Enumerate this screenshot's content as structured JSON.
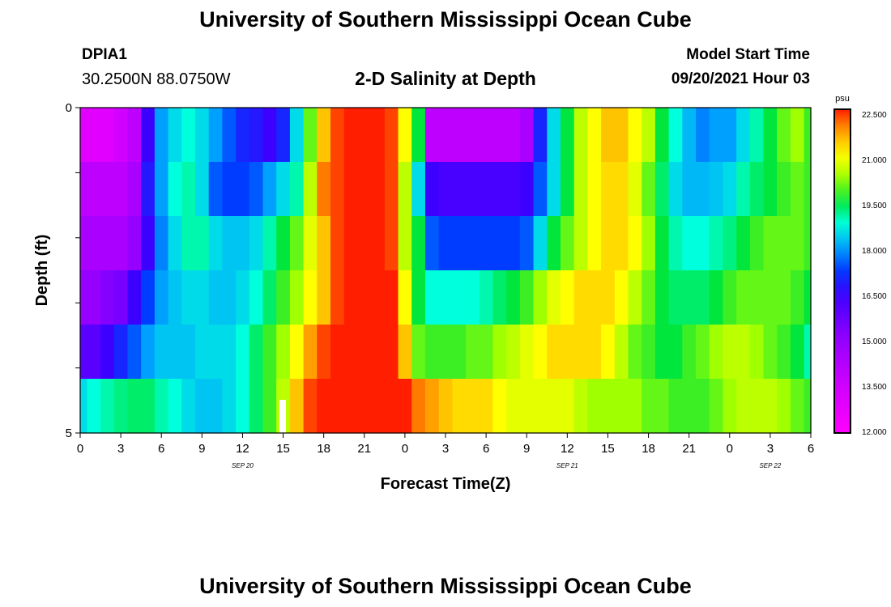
{
  "header": {
    "title": "University of Southern Mississippi Ocean Cube",
    "station": "DPIA1",
    "coords": "30.2500N  88.0750W",
    "subtitle": "2-D Salinity at Depth",
    "model_label": "Model Start Time",
    "model_time": "09/20/2021 Hour 03"
  },
  "footer": {
    "title": "University of Southern Mississippi Ocean Cube"
  },
  "chart_data": {
    "type": "heatmap",
    "title": "2-D Salinity at Depth",
    "xlabel": "Forecast Time(Z)",
    "ylabel": "Depth (ft)",
    "x_ticks": [
      "0",
      "3",
      "6",
      "9",
      "12",
      "15",
      "18",
      "21",
      "0",
      "3",
      "6",
      "9",
      "12",
      "15",
      "18",
      "21",
      "0",
      "3",
      "6"
    ],
    "x_range_hours": [
      0,
      54
    ],
    "date_labels": [
      {
        "label": "SEP 20",
        "hour": 12
      },
      {
        "label": "SEP 21",
        "hour": 36
      },
      {
        "label": "SEP 22",
        "hour": 51
      }
    ],
    "y_ticks": [
      "0",
      "5"
    ],
    "ylim": [
      0,
      5
    ],
    "depth_levels": [
      0,
      1,
      2,
      3,
      4,
      5
    ],
    "colorbar": {
      "unit": "psu",
      "min": 12.0,
      "max": 22.5,
      "labels": [
        "22.500",
        "21.000",
        "19.500",
        "18.000",
        "16.500",
        "15.000",
        "13.500",
        "12.000"
      ],
      "values": [
        22.5,
        21.0,
        19.5,
        18.0,
        16.5,
        15.0,
        13.5,
        12.0
      ]
    },
    "x_hours": [
      0,
      1,
      2,
      3,
      4,
      5,
      6,
      7,
      8,
      9,
      10,
      11,
      12,
      13,
      14,
      15,
      16,
      17,
      18,
      19,
      20,
      21,
      22,
      23,
      24,
      25,
      26,
      27,
      28,
      29,
      30,
      31,
      32,
      33,
      34,
      35,
      36,
      37,
      38,
      39,
      40,
      41,
      42,
      43,
      44,
      45,
      46,
      47,
      48,
      49,
      50,
      51,
      52,
      53,
      54
    ],
    "salinity_rows": [
      [
        13,
        13,
        13,
        13.5,
        14,
        16.5,
        18,
        18.5,
        18.8,
        18.5,
        18,
        17.5,
        17,
        16.8,
        16.5,
        17,
        18.5,
        20,
        21.5,
        22.3,
        22.5,
        22.5,
        22.5,
        22.3,
        21,
        19.5,
        14,
        14,
        14,
        14,
        14,
        14,
        14,
        14.5,
        17,
        18.5,
        19.5,
        20.5,
        21,
        21.5,
        21.5,
        21,
        20.5,
        19.5,
        18.8,
        18.2,
        17.8,
        18,
        18,
        18.5,
        19,
        19.5,
        20,
        20.3,
        19.8
      ],
      [
        14,
        14,
        14,
        14,
        14.5,
        16.8,
        18,
        18.8,
        19,
        18.5,
        17.5,
        17.3,
        17.3,
        17.5,
        18,
        18.5,
        19,
        20.5,
        22,
        22.3,
        22.5,
        22.5,
        22.5,
        22.3,
        20.5,
        18.5,
        16.5,
        16.3,
        16.3,
        16.3,
        16.3,
        16.3,
        16.3,
        16.5,
        17.5,
        18.5,
        19.5,
        20.5,
        21,
        21.3,
        21.3,
        20.8,
        20,
        19.3,
        18.5,
        18.2,
        18.2,
        18.3,
        18.5,
        19,
        19.3,
        19.5,
        19.8,
        20,
        19.8
      ],
      [
        14.5,
        14.5,
        14.5,
        14.5,
        15,
        16.5,
        17.8,
        18.5,
        19,
        19,
        18.5,
        18.3,
        18.3,
        18.5,
        19,
        19.5,
        20,
        20.8,
        21.5,
        22.3,
        22.5,
        22.5,
        22.5,
        22.3,
        20.5,
        19.5,
        17.5,
        17.3,
        17.3,
        17.3,
        17.3,
        17.3,
        17.3,
        17.5,
        18.5,
        19.5,
        20,
        20.5,
        21,
        21.3,
        21.3,
        21,
        20.3,
        19.5,
        19,
        18.8,
        18.8,
        19,
        19.2,
        19.5,
        19.8,
        20,
        20,
        20,
        19.8
      ],
      [
        15,
        15,
        15.3,
        15.5,
        16.5,
        17.3,
        18,
        18.3,
        18.5,
        18.5,
        18.3,
        18.3,
        18.5,
        18.8,
        19.3,
        19.8,
        20.3,
        21,
        21.5,
        22.3,
        22.5,
        22.5,
        22.5,
        22.5,
        21,
        19.5,
        18.8,
        18.8,
        18.8,
        18.8,
        19,
        19.3,
        19.5,
        19.8,
        20.3,
        20.8,
        21,
        21.3,
        21.3,
        21.3,
        21,
        20.5,
        20,
        19.5,
        19.3,
        19.3,
        19.3,
        19.5,
        19.8,
        20,
        20,
        20,
        20,
        19.8,
        19.5
      ],
      [
        16,
        16,
        16.5,
        17,
        17.5,
        18,
        18.3,
        18.3,
        18.3,
        18.5,
        18.5,
        18.5,
        18.8,
        19.3,
        19.8,
        20.3,
        21,
        21.8,
        22.3,
        22.5,
        22.5,
        22.5,
        22.5,
        22.5,
        21.5,
        20,
        19.8,
        19.8,
        19.8,
        20,
        20,
        20.3,
        20.5,
        20.8,
        21,
        21.3,
        21.3,
        21.3,
        21.3,
        21,
        20.5,
        20,
        19.8,
        19.5,
        19.5,
        19.8,
        20,
        20.3,
        20.5,
        20.5,
        20.3,
        20,
        19.8,
        19.5,
        19
      ],
      [
        18.5,
        18.8,
        19,
        19.2,
        19.3,
        19.3,
        19,
        18.8,
        18.5,
        18.3,
        18.3,
        18.5,
        18.8,
        19.3,
        19.8,
        20.5,
        21.5,
        22.3,
        22.5,
        22.5,
        22.5,
        22.5,
        22.5,
        22.5,
        22.5,
        22,
        21.8,
        21.5,
        21.3,
        21.3,
        21.3,
        21,
        20.8,
        20.8,
        20.8,
        20.8,
        20.8,
        20.5,
        20.3,
        20.3,
        20.3,
        20.3,
        20,
        20,
        19.8,
        19.8,
        19.8,
        20,
        20.3,
        20.5,
        20.5,
        20.5,
        20.3,
        20,
        19.8
      ]
    ]
  }
}
